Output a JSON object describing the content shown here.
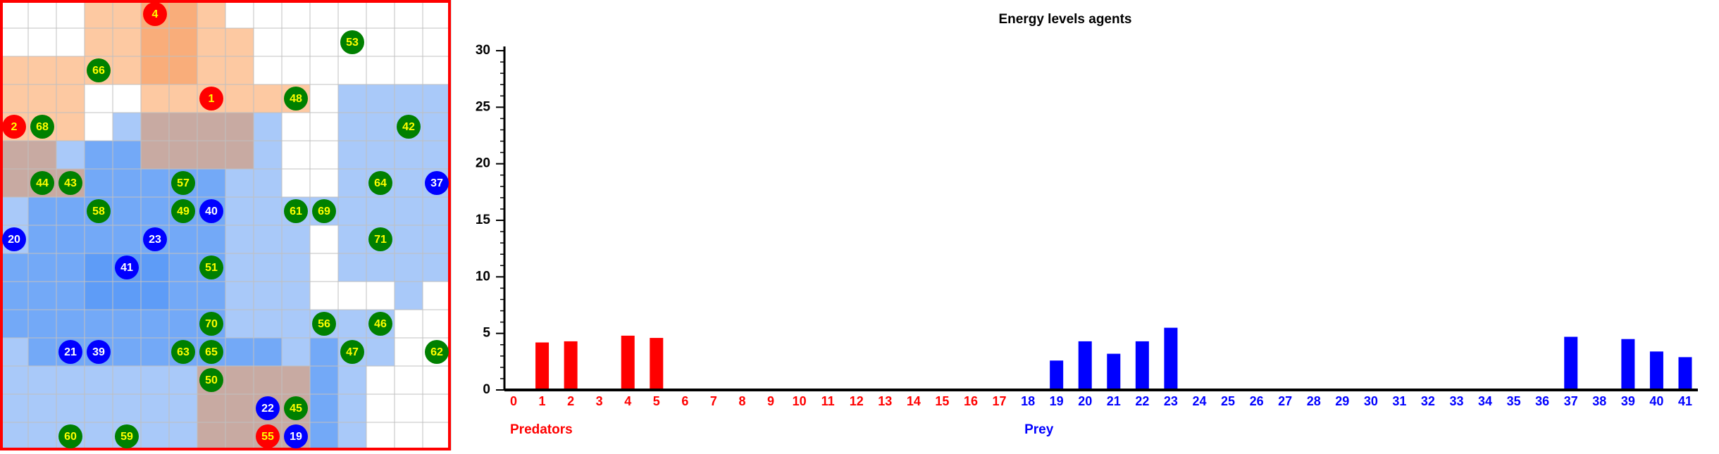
{
  "grid": {
    "agents": [
      {
        "label": "4",
        "color": "#ff0000",
        "cell": [
          5,
          0
        ]
      },
      {
        "label": "53",
        "color": "#008000",
        "cell": [
          12,
          1
        ]
      },
      {
        "label": "66",
        "color": "#008000",
        "cell": [
          3,
          2
        ]
      },
      {
        "label": "1",
        "color": "#ff0000",
        "cell": [
          7,
          3
        ]
      },
      {
        "label": "48",
        "color": "#008000",
        "cell": [
          10,
          3
        ]
      },
      {
        "label": "2",
        "color": "#ff0000",
        "cell": [
          0,
          4
        ]
      },
      {
        "label": "68",
        "color": "#008000",
        "cell": [
          1,
          4
        ]
      },
      {
        "label": "42",
        "color": "#008000",
        "cell": [
          14,
          4
        ]
      },
      {
        "label": "44",
        "color": "#008000",
        "cell": [
          1,
          6
        ]
      },
      {
        "label": "43",
        "color": "#008000",
        "cell": [
          2,
          6
        ]
      },
      {
        "label": "57",
        "color": "#008000",
        "cell": [
          6,
          6
        ]
      },
      {
        "label": "64",
        "color": "#008000",
        "cell": [
          13,
          6
        ]
      },
      {
        "label": "37",
        "color": "#0000ff",
        "cell": [
          15,
          6
        ]
      },
      {
        "label": "58",
        "color": "#008000",
        "cell": [
          3,
          7
        ]
      },
      {
        "label": "49",
        "color": "#008000",
        "cell": [
          6,
          7
        ]
      },
      {
        "label": "40",
        "color": "#0000ff",
        "cell": [
          7,
          7
        ]
      },
      {
        "label": "61",
        "color": "#008000",
        "cell": [
          10,
          7
        ]
      },
      {
        "label": "69",
        "color": "#008000",
        "cell": [
          11,
          7
        ]
      },
      {
        "label": "20",
        "color": "#0000ff",
        "cell": [
          0,
          8
        ]
      },
      {
        "label": "23",
        "color": "#0000ff",
        "cell": [
          5,
          8
        ]
      },
      {
        "label": "71",
        "color": "#008000",
        "cell": [
          13,
          8
        ]
      },
      {
        "label": "41",
        "color": "#0000ff",
        "cell": [
          4,
          9
        ]
      },
      {
        "label": "51",
        "color": "#008000",
        "cell": [
          7,
          9
        ]
      },
      {
        "label": "70",
        "color": "#008000",
        "cell": [
          7,
          11
        ]
      },
      {
        "label": "56",
        "color": "#008000",
        "cell": [
          11,
          11
        ]
      },
      {
        "label": "46",
        "color": "#008000",
        "cell": [
          13,
          11
        ]
      },
      {
        "label": "21",
        "color": "#0000ff",
        "cell": [
          2,
          12
        ]
      },
      {
        "label": "39",
        "color": "#0000ff",
        "cell": [
          3,
          12
        ]
      },
      {
        "label": "63",
        "color": "#008000",
        "cell": [
          6,
          12
        ]
      },
      {
        "label": "65",
        "color": "#008000",
        "cell": [
          7,
          12
        ]
      },
      {
        "label": "47",
        "color": "#008000",
        "cell": [
          12,
          12
        ]
      },
      {
        "label": "62",
        "color": "#008000",
        "cell": [
          15,
          12
        ]
      },
      {
        "label": "50",
        "color": "#008000",
        "cell": [
          7,
          13
        ]
      },
      {
        "label": "22",
        "color": "#0000ff",
        "cell": [
          9,
          14
        ]
      },
      {
        "label": "45",
        "color": "#008000",
        "cell": [
          10,
          14
        ]
      },
      {
        "label": "60",
        "color": "#008000",
        "cell": [
          2,
          15
        ]
      },
      {
        "label": "59",
        "color": "#008000",
        "cell": [
          4,
          15
        ]
      },
      {
        "label": "55",
        "color": "#ff0000",
        "cell": [
          9,
          15
        ]
      },
      {
        "label": "19",
        "color": "#0000ff",
        "cell": [
          10,
          15
        ]
      }
    ]
  },
  "chart_data": {
    "type": "bar",
    "title": "Energy levels agents",
    "categories": [
      "0",
      "1",
      "2",
      "3",
      "4",
      "5",
      "6",
      "7",
      "8",
      "9",
      "10",
      "11",
      "12",
      "13",
      "14",
      "15",
      "16",
      "17",
      "18",
      "19",
      "20",
      "21",
      "22",
      "23",
      "24",
      "25",
      "26",
      "27",
      "28",
      "29",
      "30",
      "31",
      "32",
      "33",
      "34",
      "35",
      "36",
      "37",
      "38",
      "39",
      "40",
      "41"
    ],
    "series": [
      {
        "name": "Predators",
        "color": "#ff0000",
        "values": [
          0,
          4.2,
          4.3,
          0,
          4.8,
          4.6,
          0,
          0,
          0,
          0,
          0,
          0,
          0,
          0,
          0,
          0,
          0,
          0,
          null,
          null,
          null,
          null,
          null,
          null,
          null,
          null,
          null,
          null,
          null,
          null,
          null,
          null,
          null,
          null,
          null,
          null,
          null,
          null,
          null,
          null,
          null,
          null
        ]
      },
      {
        "name": "Prey",
        "color": "#0000ff",
        "values": [
          null,
          null,
          null,
          null,
          null,
          null,
          null,
          null,
          null,
          null,
          null,
          null,
          null,
          null,
          null,
          null,
          null,
          null,
          0,
          2.6,
          4.3,
          3.2,
          4.3,
          5.5,
          0,
          0,
          0,
          0,
          0,
          0,
          0,
          0,
          0,
          0,
          0,
          0,
          0,
          4.7,
          0,
          4.5,
          3.4,
          2.9
        ]
      }
    ],
    "ylim": [
      0,
      30
    ],
    "yticks": [
      0,
      5,
      10,
      15,
      20,
      25,
      30
    ]
  }
}
